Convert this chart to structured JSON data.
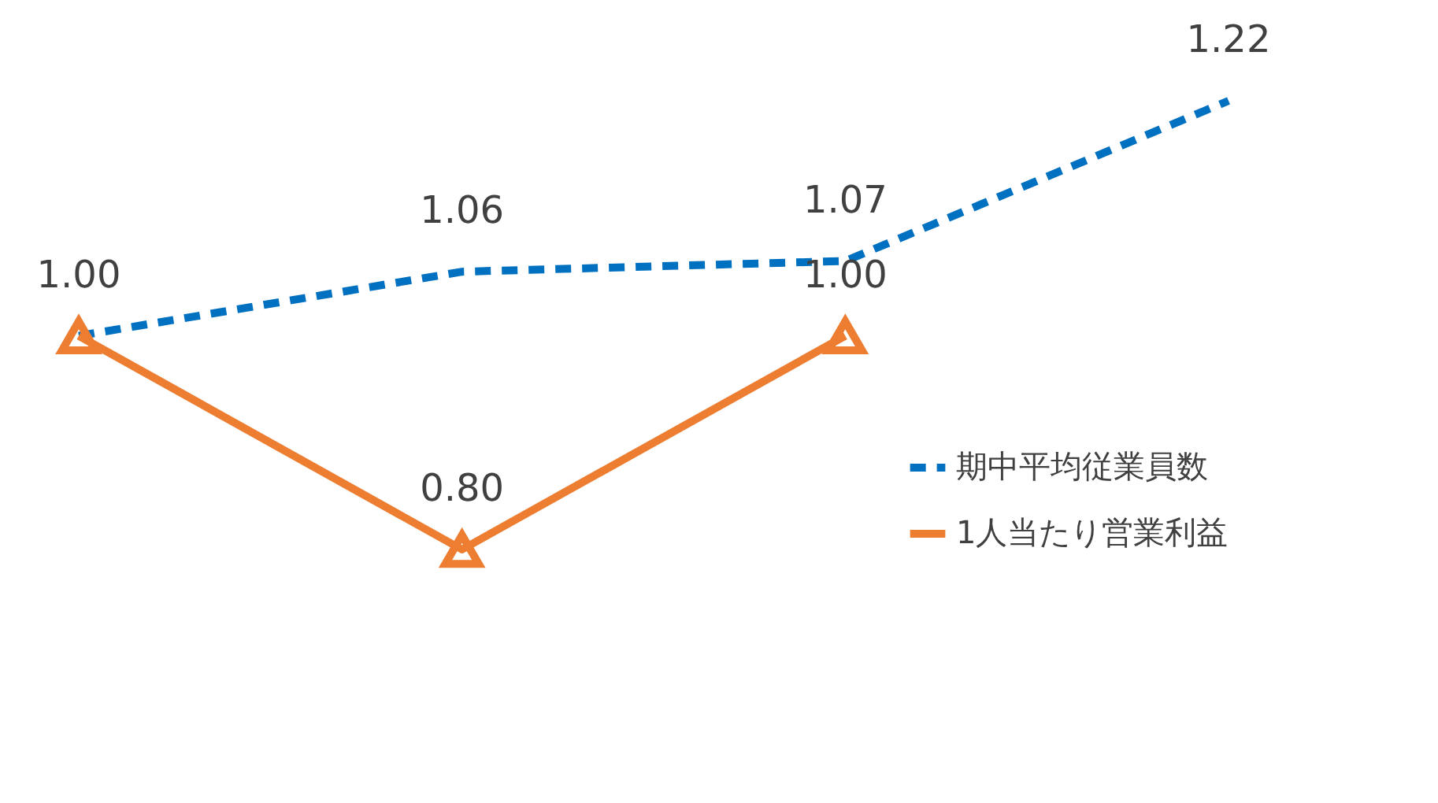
{
  "chart_data": {
    "type": "line",
    "categories": [
      null,
      null,
      null,
      null
    ],
    "series": [
      {
        "name": "期中平均従業員数",
        "color": "#0070c0",
        "values": [
          1.0,
          1.06,
          1.07,
          1.22
        ],
        "value_labels": [
          "1.00",
          "1.06",
          "1.07",
          "1.22"
        ],
        "line_style": "dashed",
        "marker": "none"
      },
      {
        "name": "1人当たり営業利益",
        "color": "#ed7d31",
        "values": [
          1.0,
          0.8,
          1.0,
          null
        ],
        "value_labels": [
          null,
          "0.80",
          "1.00",
          null
        ],
        "line_style": "solid",
        "marker": "triangle"
      }
    ],
    "legend": "bottom right",
    "grid": false
  }
}
